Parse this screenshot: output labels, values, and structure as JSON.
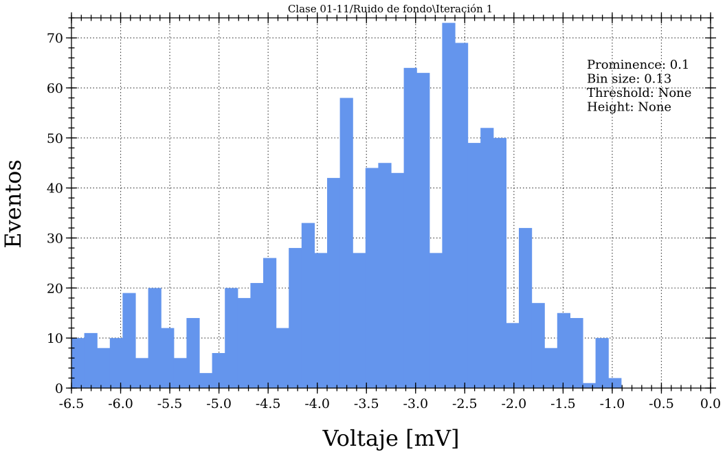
{
  "chart_data": {
    "type": "bar",
    "title": "Clase 01-11/Ruido de fondo\\Iteración 1",
    "xlabel": "Voltaje [mV]",
    "ylabel": "Eventos",
    "xlim": [
      -6.5,
      0.0
    ],
    "ylim": [
      0,
      74
    ],
    "bin_size": 0.13,
    "grid": true,
    "x_ticks": [
      -6.5,
      -6.0,
      -5.5,
      -5.0,
      -4.5,
      -4.0,
      -3.5,
      -3.0,
      -2.5,
      -2.0,
      -1.5,
      -1.0,
      -0.5,
      0.0
    ],
    "x_tick_labels": [
      "-6.5",
      "-6.0",
      "-5.5",
      "-5.0",
      "-4.5",
      "-4.0",
      "-3.5",
      "-3.0",
      "-2.5",
      "-2.0",
      "-1.5",
      "-1.0",
      "-0.5",
      "0.0"
    ],
    "y_ticks": [
      0,
      10,
      20,
      30,
      40,
      50,
      60,
      70
    ],
    "y_tick_labels": [
      "0",
      "10",
      "20",
      "30",
      "40",
      "50",
      "60",
      "70"
    ],
    "bin_start": -6.5,
    "values": [
      10,
      11,
      8,
      10,
      19,
      6,
      20,
      12,
      6,
      14,
      3,
      7,
      20,
      18,
      21,
      26,
      12,
      28,
      33,
      27,
      42,
      58,
      27,
      44,
      45,
      43,
      64,
      63,
      27,
      73,
      69,
      49,
      52,
      50,
      13,
      32,
      17,
      8,
      15,
      14,
      1,
      10,
      2
    ],
    "bar_color": "#6495ED",
    "annotations": [
      "Prominence: 0.1",
      "Bin size: 0.13",
      "Threshold: None",
      "Height: None"
    ],
    "annotation_position": "top-right"
  }
}
